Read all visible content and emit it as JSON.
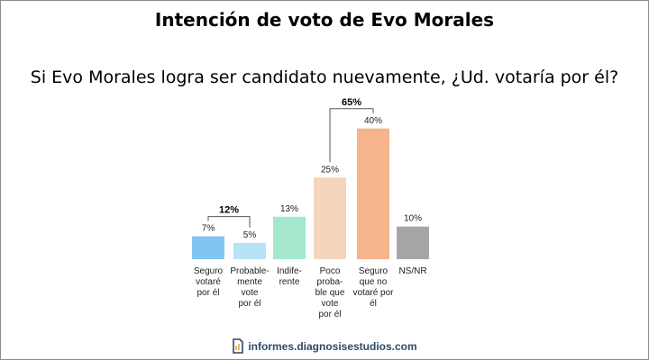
{
  "header": {
    "title": "Intención de voto de Evo Morales",
    "subtitle": "Si Evo Morales logra ser candidato nuevamente, ¿Ud. votaría por él?"
  },
  "footer": {
    "site": "informes.diagnosisestudios.com",
    "logo_icon": "document-icon"
  },
  "chart_data": {
    "type": "bar",
    "categories": [
      [
        "Seguro",
        "votaré",
        "por él"
      ],
      [
        "Probable-",
        "mente",
        "vote",
        "por él"
      ],
      [
        "Indife-",
        "rente"
      ],
      [
        "Poco",
        "proba-",
        "ble que",
        "vote",
        "por él"
      ],
      [
        "Seguro",
        "que no",
        "votaré por",
        "él"
      ],
      [
        "NS/NR"
      ]
    ],
    "values": [
      7,
      5,
      13,
      25,
      40,
      10
    ],
    "value_labels": [
      "7%",
      "5%",
      "13%",
      "25%",
      "40%",
      "10%"
    ],
    "colors": [
      "#7fc6f0",
      "#b9e2f8",
      "#a3e8cc",
      "#f5d5bd",
      "#f5b48b",
      "#a6a6a6"
    ],
    "groups": [
      {
        "label": "12%",
        "from": 0,
        "to": 1
      },
      {
        "label": "65%",
        "from": 3,
        "to": 4
      }
    ],
    "ylim": [
      0,
      40
    ],
    "grid": false
  }
}
